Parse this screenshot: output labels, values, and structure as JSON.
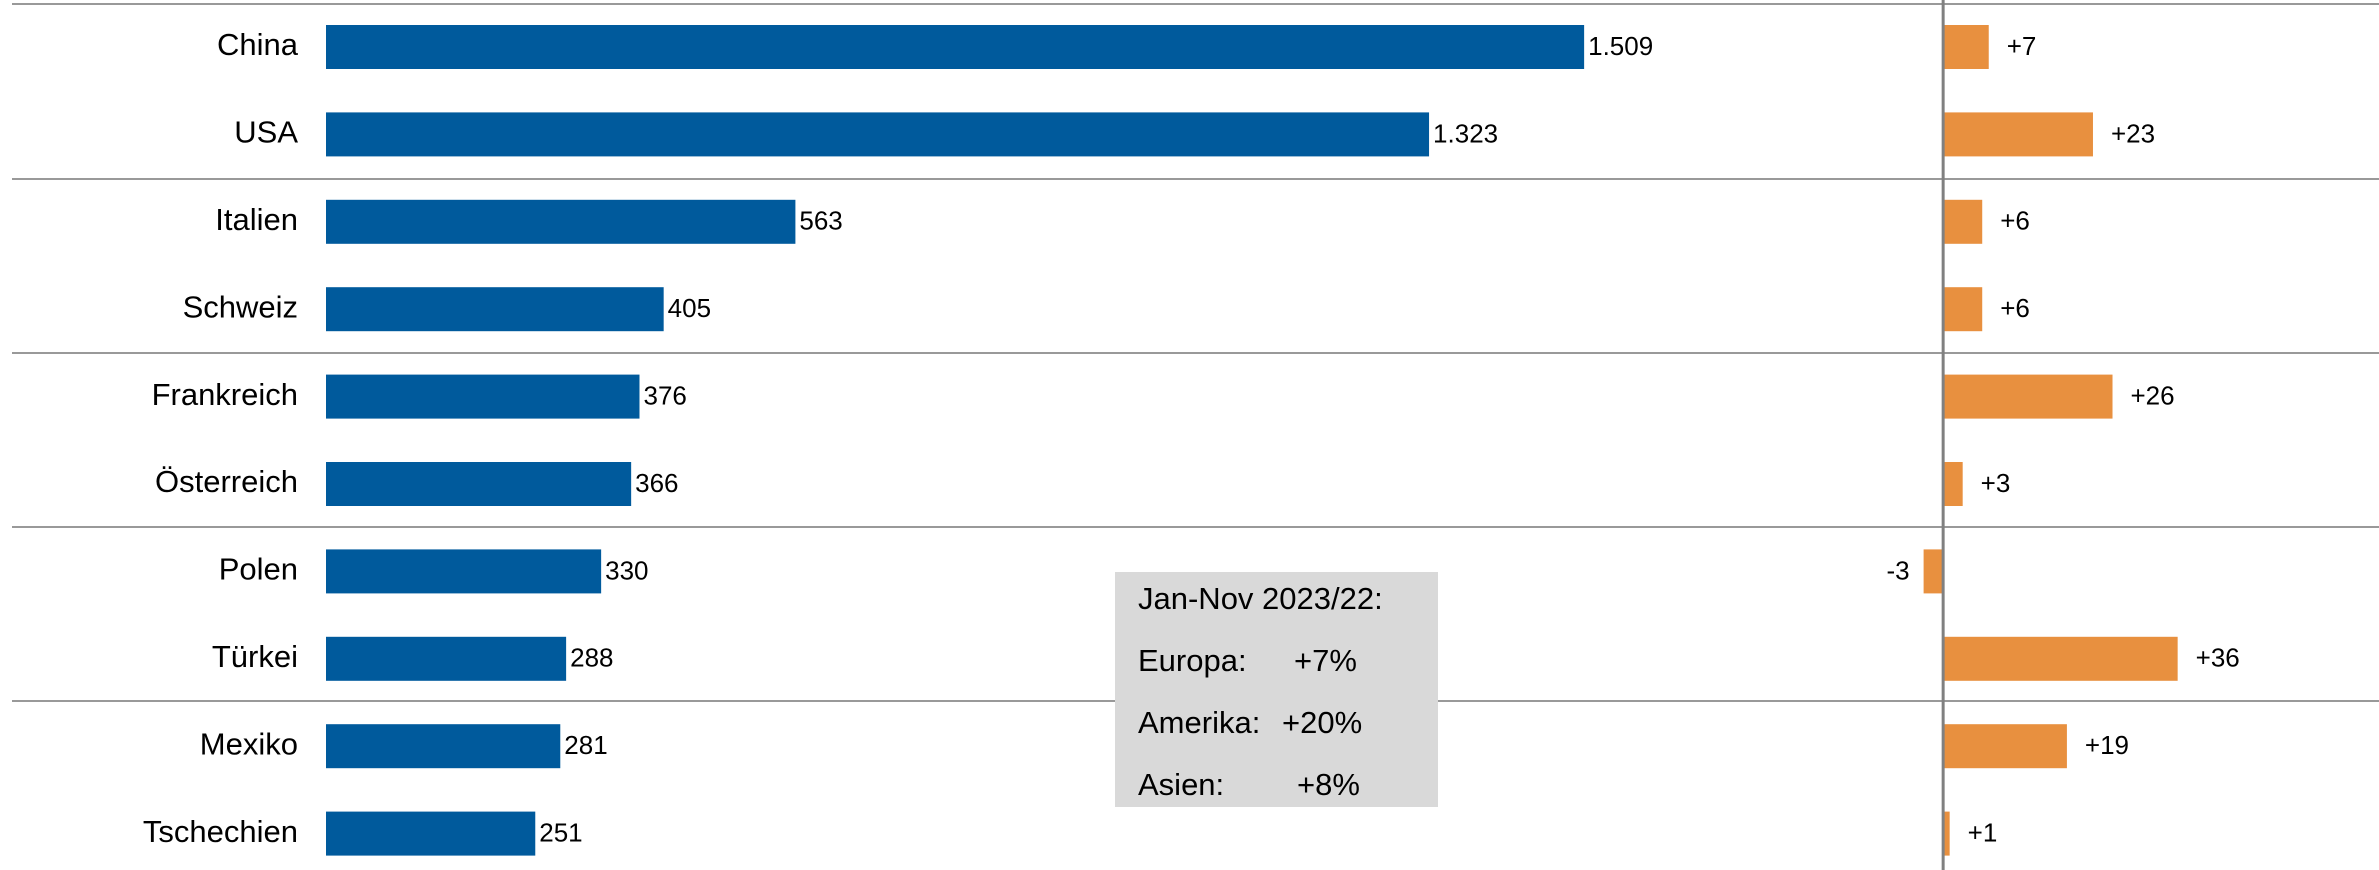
{
  "chart_data": [
    {
      "type": "bar",
      "orientation": "horizontal",
      "categories": [
        "China",
        "USA",
        "Italien",
        "Schweiz",
        "Frankreich",
        "Österreich",
        "Polen",
        "Türkei",
        "Mexiko",
        "Tschechien"
      ],
      "values": [
        1509,
        1323,
        563,
        405,
        376,
        366,
        330,
        288,
        281,
        251
      ],
      "value_labels": [
        "1.509",
        "1.323",
        "563",
        "405",
        "376",
        "366",
        "330",
        "288",
        "281",
        "251"
      ],
      "color": "#005a9c",
      "xlim": [
        0,
        1600
      ]
    },
    {
      "type": "bar",
      "orientation": "horizontal",
      "values": [
        7,
        23,
        6,
        6,
        26,
        3,
        -3,
        36,
        19,
        1
      ],
      "value_labels": [
        "+7",
        "+23",
        "+6",
        "+6",
        "+26",
        "+3",
        "-3",
        "+36",
        "+19",
        "+1"
      ],
      "color": "#e8903f",
      "xlim": [
        -10,
        60
      ]
    }
  ],
  "annotation": {
    "title": "Jan-Nov 2023/22:",
    "rows": [
      [
        "Europa:",
        "+7%"
      ],
      [
        "Amerika:",
        "+20%"
      ],
      [
        "Asien:",
        "+8%"
      ]
    ]
  }
}
